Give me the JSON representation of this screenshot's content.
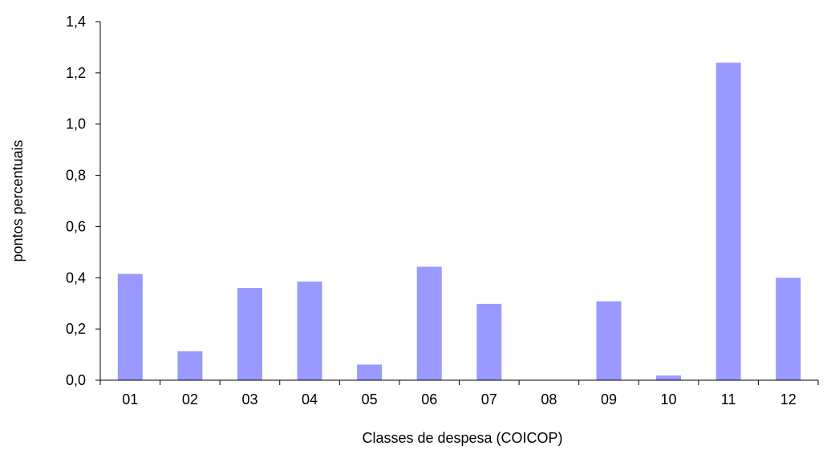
{
  "chart_data": {
    "type": "bar",
    "categories": [
      "01",
      "02",
      "03",
      "04",
      "05",
      "06",
      "07",
      "08",
      "09",
      "10",
      "11",
      "12"
    ],
    "values": [
      0.415,
      0.113,
      0.36,
      0.385,
      0.061,
      0.443,
      0.298,
      0.0,
      0.308,
      0.018,
      1.24,
      0.4
    ],
    "xlabel": "Classes de despesa (COICOP)",
    "ylabel": "pontos percentuais",
    "ylim": [
      0,
      1.4
    ],
    "yticks": [
      "0,0",
      "0,2",
      "0,4",
      "0,6",
      "0,8",
      "1,0",
      "1,2",
      "1,4"
    ],
    "grid": false,
    "bar_color": "#9999ff"
  }
}
